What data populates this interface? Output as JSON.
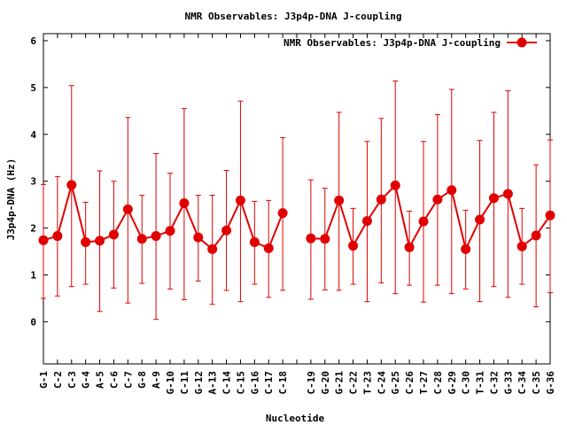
{
  "chart_data": {
    "type": "line",
    "title": "NMR Observables: J3p4p-DNA J-coupling",
    "xlabel": "Nucleotide",
    "ylabel": "J3p4p-DNA (Hz)",
    "ylim": [
      -0.9,
      6.15
    ],
    "yticks": [
      "0",
      "1",
      "2",
      "3",
      "4",
      "5",
      "6"
    ],
    "legend_position": "top-right",
    "grid": false,
    "color": "#e00000",
    "categories": [
      "G-1",
      "C-2",
      "C-3",
      "G-4",
      "A-5",
      "C-6",
      "C-7",
      "G-8",
      "A-9",
      "G-10",
      "C-11",
      "G-12",
      "A-13",
      "C-14",
      "C-15",
      "G-16",
      "C-17",
      "C-18",
      "",
      "C-19",
      "G-20",
      "G-21",
      "C-22",
      "T-23",
      "C-24",
      "G-25",
      "C-26",
      "T-27",
      "C-28",
      "G-29",
      "C-30",
      "T-31",
      "C-32",
      "G-33",
      "C-34",
      "C-35",
      "G-36"
    ],
    "series": [
      {
        "name": "NMR Observables: J3p4p-DNA J-coupling",
        "values": [
          1.74,
          1.83,
          2.92,
          1.7,
          1.73,
          1.86,
          2.4,
          1.77,
          1.83,
          1.94,
          2.53,
          1.8,
          1.55,
          1.95,
          2.59,
          1.7,
          1.57,
          2.32,
          null,
          1.78,
          1.77,
          2.59,
          1.62,
          2.15,
          2.61,
          2.91,
          1.59,
          2.14,
          2.61,
          2.81,
          1.55,
          2.18,
          2.64,
          2.73,
          1.61,
          1.84,
          2.27
        ],
        "err_low": [
          0.5,
          0.55,
          0.75,
          0.8,
          0.22,
          0.72,
          0.4,
          0.82,
          0.05,
          0.7,
          0.47,
          0.87,
          0.37,
          0.67,
          0.43,
          0.8,
          0.52,
          0.67,
          null,
          0.48,
          0.68,
          0.67,
          0.8,
          0.43,
          0.83,
          0.6,
          0.78,
          0.42,
          0.78,
          0.6,
          0.7,
          0.43,
          0.75,
          0.52,
          0.8,
          0.32,
          0.62
        ],
        "err_high": [
          2.93,
          3.1,
          5.04,
          2.55,
          3.22,
          3.0,
          4.36,
          2.7,
          3.59,
          3.17,
          4.55,
          2.7,
          2.7,
          3.23,
          4.71,
          2.57,
          2.59,
          3.93,
          null,
          3.03,
          2.85,
          4.47,
          2.42,
          3.85,
          4.34,
          5.14,
          2.36,
          3.85,
          4.42,
          4.96,
          2.38,
          3.87,
          4.47,
          4.93,
          2.42,
          3.35,
          3.88
        ]
      }
    ]
  }
}
